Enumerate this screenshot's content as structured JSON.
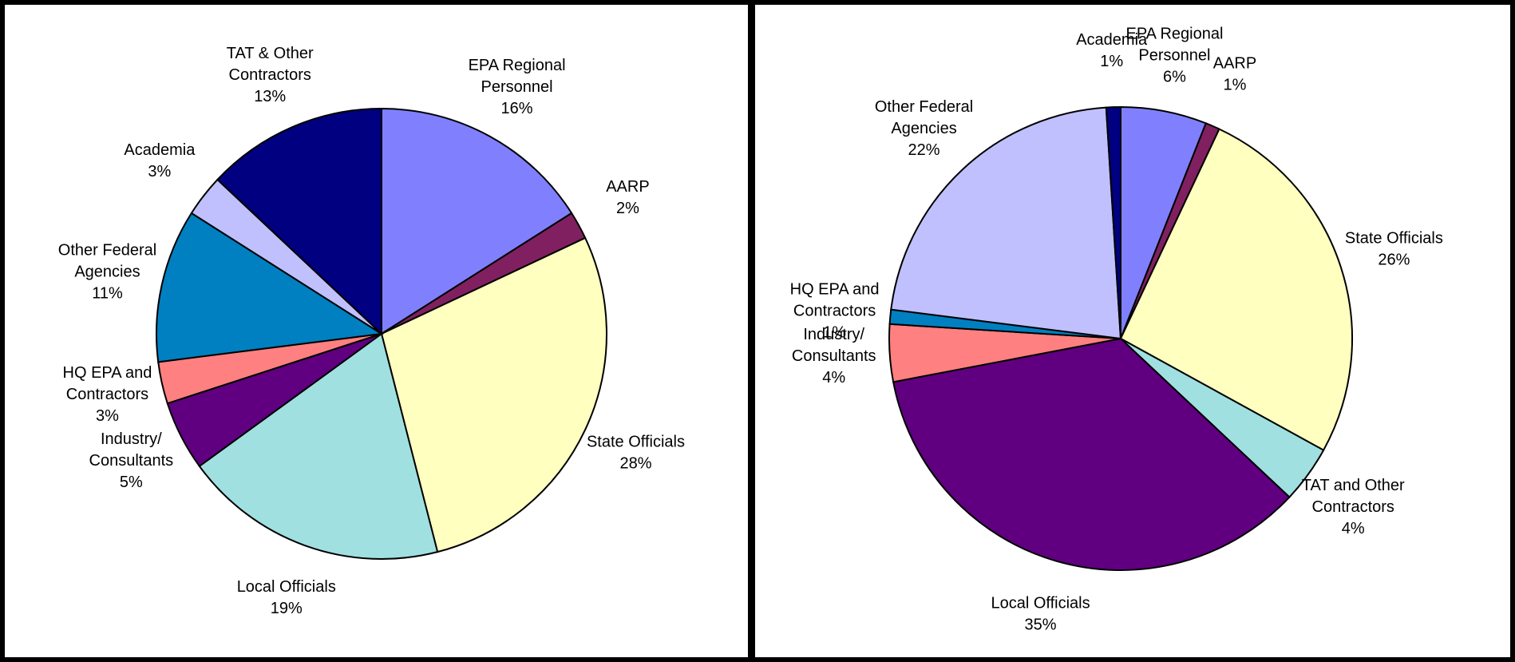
{
  "chart_data": [
    {
      "type": "pie",
      "categories": [
        [
          "EPA Regional",
          "Personnel"
        ],
        [
          "AARP"
        ],
        [
          "State Officials"
        ],
        [
          "Local Officials"
        ],
        [
          "Industry/",
          "Consultants"
        ],
        [
          "HQ EPA and",
          "Contractors"
        ],
        [
          "Other Federal",
          "Agencies"
        ],
        [
          "Academia"
        ],
        [
          "TAT & Other",
          "Contractors"
        ]
      ],
      "values": [
        16,
        2,
        28,
        19,
        5,
        3,
        11,
        3,
        13
      ],
      "value_labels": [
        "16%",
        "2%",
        "28%",
        "19%",
        "5%",
        "3%",
        "11%",
        "3%",
        "13%"
      ],
      "colors": [
        "#8080ff",
        "#802060",
        "#ffffc0",
        "#a0e0e0",
        "#600080",
        "#ff8080",
        "#0080c0",
        "#c0c0ff",
        "#000080"
      ]
    },
    {
      "type": "pie",
      "categories": [
        [
          "EPA Regional",
          "Personnel"
        ],
        [
          "AARP"
        ],
        [
          "State Officials"
        ],
        [
          "TAT and Other",
          "Contractors"
        ],
        [
          "Local Officials"
        ],
        [
          "Industry/",
          "Consultants"
        ],
        [
          "HQ EPA and",
          "Contractors"
        ],
        [
          "Other Federal",
          "Agencies"
        ],
        [
          "Academia"
        ]
      ],
      "values": [
        6,
        1,
        26,
        4,
        35,
        4,
        1,
        22,
        1
      ],
      "value_labels": [
        "6%",
        "1%",
        "26%",
        "4%",
        "35%",
        "4%",
        "1%",
        "22%",
        "1%"
      ],
      "colors": [
        "#8080ff",
        "#802060",
        "#ffffc0",
        "#a0e0e0",
        "#600080",
        "#ff8080",
        "#0080c0",
        "#c0c0ff",
        "#000080"
      ]
    }
  ]
}
